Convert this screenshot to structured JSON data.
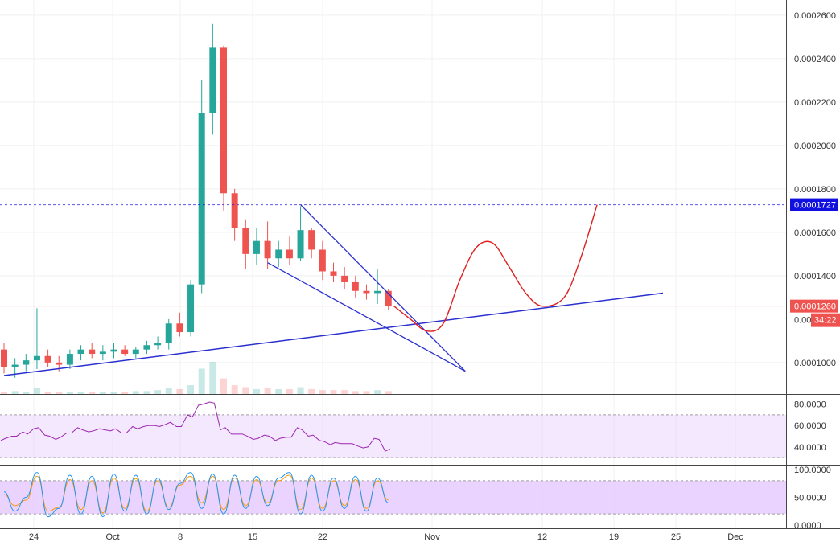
{
  "chart_data": {
    "type": "candlestick",
    "colors": {
      "up": "#26a69a",
      "down": "#ef5350",
      "trendline": "#2a2fcf",
      "projection": "#e02020",
      "rsi": "#9c27b0",
      "stoch_k": "#2196f3",
      "stoch_d": "#ff9800",
      "band_fill": "#e6ccff",
      "last_price_bg": "#ef5350",
      "level_bg": "#1010e0"
    },
    "price_axis": {
      "ticks": [
        "0.0002600",
        "0.0002400",
        "0.0002200",
        "0.0002000",
        "0.0001800",
        "0.0001600",
        "0.0001400",
        "0.0001000"
      ],
      "range": [
        8.55e-05,
        0.000267
      ]
    },
    "date_axis": {
      "labels": [
        "24",
        "Oct",
        "8",
        "15",
        "22",
        "Nov",
        "12",
        "19",
        "25",
        "Dec"
      ]
    },
    "price_series": [
      {
        "day": 0,
        "o": 0.000106,
        "h": 0.000109,
        "l": 9.5e-05,
        "c": 9.8e-05
      },
      {
        "day": 1,
        "o": 9.8e-05,
        "h": 0.000102,
        "l": 9.3e-05,
        "c": 9.9e-05
      },
      {
        "day": 2,
        "o": 9.9e-05,
        "h": 0.000104,
        "l": 9.6e-05,
        "c": 0.000101
      },
      {
        "day": 3,
        "o": 0.000101,
        "h": 0.000125,
        "l": 9.7e-05,
        "c": 0.000103
      },
      {
        "day": 4,
        "o": 0.000103,
        "h": 0.000106,
        "l": 9.8e-05,
        "c": 0.0001
      },
      {
        "day": 5,
        "o": 0.0001,
        "h": 0.000103,
        "l": 9.6e-05,
        "c": 9.9e-05
      },
      {
        "day": 6,
        "o": 9.9e-05,
        "h": 0.000106,
        "l": 9.7e-05,
        "c": 0.000104
      },
      {
        "day": 7,
        "o": 0.000104,
        "h": 0.000108,
        "l": 0.000101,
        "c": 0.000106
      },
      {
        "day": 8,
        "o": 0.000106,
        "h": 0.000109,
        "l": 0.000102,
        "c": 0.000104
      },
      {
        "day": 9,
        "o": 0.000104,
        "h": 0.000108,
        "l": 0.000101,
        "c": 0.000105
      },
      {
        "day": 10,
        "o": 0.000105,
        "h": 0.000109,
        "l": 0.000102,
        "c": 0.000106
      },
      {
        "day": 11,
        "o": 0.000106,
        "h": 0.000108,
        "l": 0.000103,
        "c": 0.000104
      },
      {
        "day": 12,
        "o": 0.000104,
        "h": 0.000107,
        "l": 0.000102,
        "c": 0.000106
      },
      {
        "day": 13,
        "o": 0.000106,
        "h": 0.00011,
        "l": 0.000104,
        "c": 0.000108
      },
      {
        "day": 14,
        "o": 0.000108,
        "h": 0.000112,
        "l": 0.000106,
        "c": 0.000109
      },
      {
        "day": 15,
        "o": 0.000109,
        "h": 0.00012,
        "l": 0.000106,
        "c": 0.000118
      },
      {
        "day": 16,
        "o": 0.000118,
        "h": 0.000123,
        "l": 0.000112,
        "c": 0.000114
      },
      {
        "day": 17,
        "o": 0.000114,
        "h": 0.000138,
        "l": 0.000112,
        "c": 0.000136
      },
      {
        "day": 18,
        "o": 0.000136,
        "h": 0.00023,
        "l": 0.000132,
        "c": 0.000215
      },
      {
        "day": 19,
        "o": 0.000215,
        "h": 0.000256,
        "l": 0.000205,
        "c": 0.000245
      },
      {
        "day": 20,
        "o": 0.000245,
        "h": 0.000246,
        "l": 0.00017,
        "c": 0.000178
      },
      {
        "day": 21,
        "o": 0.000178,
        "h": 0.00018,
        "l": 0.000156,
        "c": 0.000162
      },
      {
        "day": 22,
        "o": 0.000162,
        "h": 0.000166,
        "l": 0.000143,
        "c": 0.00015
      },
      {
        "day": 23,
        "o": 0.00015,
        "h": 0.000162,
        "l": 0.000145,
        "c": 0.000156
      },
      {
        "day": 24,
        "o": 0.000156,
        "h": 0.000165,
        "l": 0.000143,
        "c": 0.000148
      },
      {
        "day": 25,
        "o": 0.000148,
        "h": 0.000156,
        "l": 0.000144,
        "c": 0.000152
      },
      {
        "day": 26,
        "o": 0.000152,
        "h": 0.000158,
        "l": 0.000145,
        "c": 0.000148
      },
      {
        "day": 27,
        "o": 0.000148,
        "h": 0.000172,
        "l": 0.000147,
        "c": 0.000161
      },
      {
        "day": 28,
        "o": 0.000161,
        "h": 0.000162,
        "l": 0.000148,
        "c": 0.000152
      },
      {
        "day": 29,
        "o": 0.000152,
        "h": 0.000156,
        "l": 0.000138,
        "c": 0.000142
      },
      {
        "day": 30,
        "o": 0.000142,
        "h": 0.000146,
        "l": 0.000137,
        "c": 0.00014
      },
      {
        "day": 31,
        "o": 0.00014,
        "h": 0.000144,
        "l": 0.000134,
        "c": 0.000137
      },
      {
        "day": 32,
        "o": 0.000137,
        "h": 0.00014,
        "l": 0.00013,
        "c": 0.000133
      },
      {
        "day": 33,
        "o": 0.000133,
        "h": 0.000136,
        "l": 0.000129,
        "c": 0.000132
      },
      {
        "day": 34,
        "o": 0.000132,
        "h": 0.000143,
        "l": 0.000127,
        "c": 0.000133
      },
      {
        "day": 35,
        "o": 0.000133,
        "h": 0.000134,
        "l": 0.000124,
        "c": 0.000126
      }
    ],
    "volume_series": [
      2,
      3,
      2,
      6,
      2,
      2,
      2,
      2,
      2,
      2,
      2,
      2,
      3,
      3,
      4,
      6,
      5,
      9,
      26,
      33,
      16,
      9,
      7,
      5,
      6,
      5,
      5,
      7,
      5,
      4,
      4,
      4,
      3,
      3,
      4,
      3
    ],
    "rsi_series": [
      48,
      50,
      52,
      58,
      50,
      49,
      53,
      56,
      55,
      56,
      57,
      53,
      57,
      60,
      59,
      63,
      59,
      68,
      80,
      81,
      58,
      52,
      50,
      48,
      50,
      48,
      49,
      56,
      51,
      45,
      44,
      43,
      41,
      40,
      47,
      38
    ],
    "stoch_k": [
      60,
      25,
      50,
      95,
      15,
      30,
      90,
      20,
      88,
      15,
      92,
      25,
      90,
      20,
      85,
      28,
      75,
      95,
      30,
      92,
      20,
      90,
      30,
      88,
      35,
      85,
      95,
      20,
      90,
      25,
      85,
      30,
      88,
      25,
      85,
      40
    ],
    "stoch_d": [
      55,
      35,
      45,
      88,
      25,
      32,
      82,
      28,
      80,
      22,
      85,
      30,
      84,
      25,
      80,
      32,
      72,
      88,
      40,
      88,
      28,
      85,
      35,
      82,
      40,
      80,
      90,
      28,
      85,
      30,
      80,
      35,
      82,
      30,
      80,
      45
    ],
    "levels": {
      "resistance": 0.0001727,
      "resistance_label": "0.0001727",
      "last_price": 0.000126,
      "last_price_label": "0.0001260",
      "countdown": "34:22",
      "hidden_axis_fragment": "0.00"
    },
    "drawings": {
      "ascending_support": [
        {
          "day": 0,
          "price": 9.4e-05
        },
        {
          "day": 60,
          "price": 0.000132
        }
      ],
      "wedge_upper": [
        {
          "day": 27,
          "price": 0.0001727
        },
        {
          "day": 42,
          "price": 9.6e-05
        }
      ],
      "wedge_lower": [
        {
          "day": 24,
          "price": 0.000146
        },
        {
          "day": 42,
          "price": 9.6e-05
        }
      ],
      "projection": [
        {
          "day": 35.5,
          "price": 0.000126
        },
        {
          "day": 37,
          "price": 0.00012
        },
        {
          "day": 38.5,
          "price": 0.0001145
        },
        {
          "day": 40,
          "price": 0.000118
        },
        {
          "day": 41.5,
          "price": 0.000138
        },
        {
          "day": 43,
          "price": 0.000153
        },
        {
          "day": 44.5,
          "price": 0.000155
        },
        {
          "day": 46,
          "price": 0.000144
        },
        {
          "day": 47.5,
          "price": 0.000132
        },
        {
          "day": 49,
          "price": 0.000126
        },
        {
          "day": 51,
          "price": 0.00013
        },
        {
          "day": 52.5,
          "price": 0.000148
        },
        {
          "day": 54,
          "price": 0.0001727
        }
      ]
    },
    "rsi_panel": {
      "ticks": [
        "80.0000",
        "60.0000",
        "40.0000"
      ],
      "band": [
        30,
        70
      ],
      "range": [
        24,
        88
      ]
    },
    "stoch_panel": {
      "ticks": [
        "100.0000",
        "50.0000",
        "0.0000"
      ],
      "band": [
        20,
        80
      ],
      "range": [
        -6,
        106
      ]
    }
  }
}
